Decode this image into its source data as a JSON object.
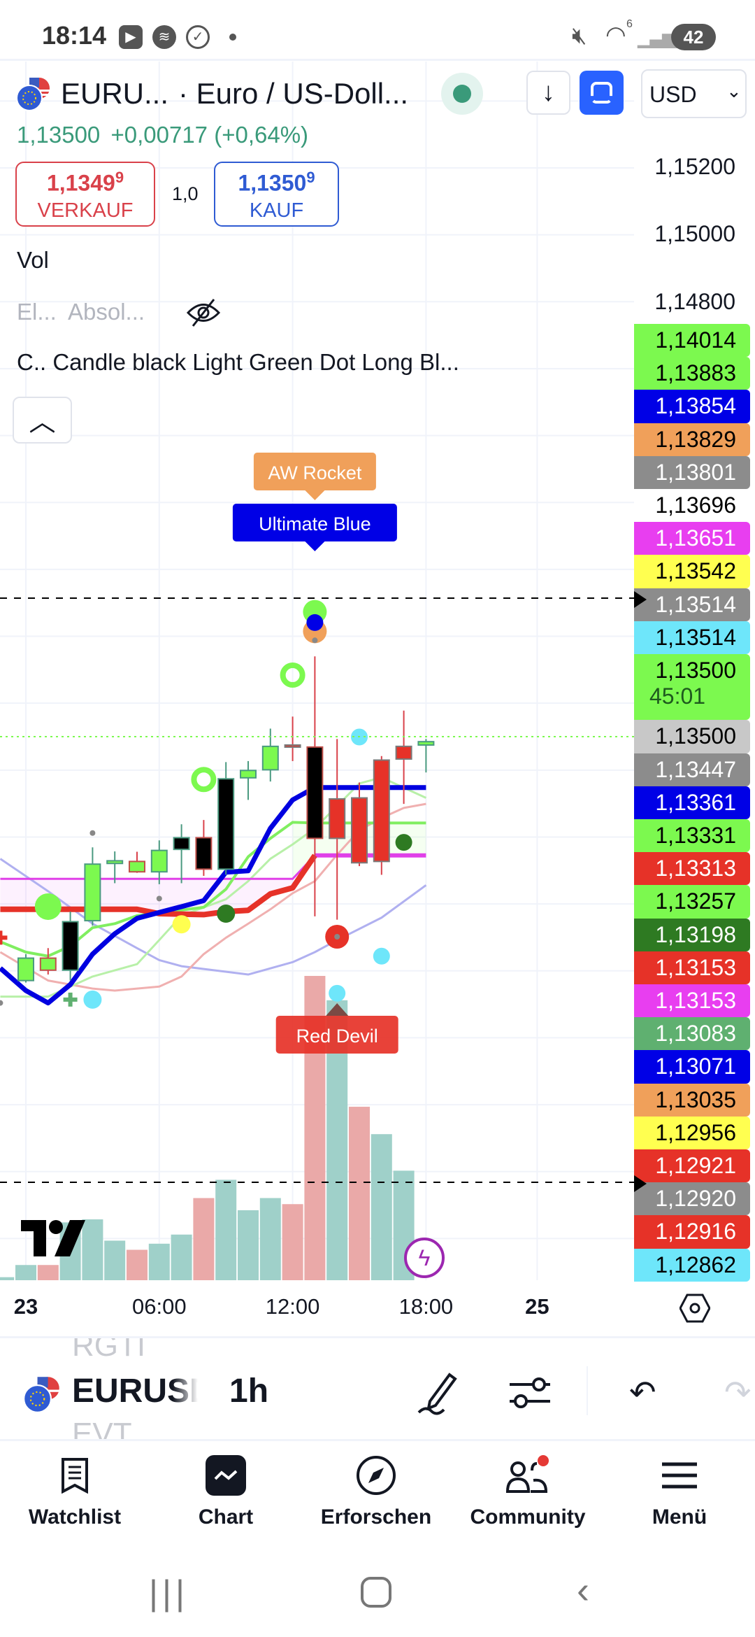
{
  "status_bar": {
    "time": "18:14",
    "battery": "42",
    "wifi_badge": "6"
  },
  "header": {
    "symbol": "EURU...",
    "description": "· Euro / US-Doll...",
    "currency": "USD"
  },
  "quote": {
    "price": "1,13500",
    "change": "+0,00717",
    "change_pct": "(+0,64%)"
  },
  "trade": {
    "sell_price": "1,1349",
    "sell_sup": "9",
    "sell_label": "VERKAUF",
    "spread": "1,0",
    "buy_price": "1,1350",
    "buy_sup": "9",
    "buy_label": "KAUF",
    "sell_color": "#d9414a",
    "buy_color": "#2f5bd3"
  },
  "indicators": {
    "vol": "Vol",
    "el": "El...",
    "absol": "Absol...",
    "candle_prefix": "C..",
    "candle_name": "Candle black Light Green Dot Long Bl..."
  },
  "price_axis": {
    "ticks": [
      "1,15200",
      "1,15000",
      "1,14800"
    ],
    "labels": [
      {
        "text": "1,14014",
        "bg": "#7cf94f",
        "fg": "#000"
      },
      {
        "text": "1,13883",
        "bg": "#7cf94f",
        "fg": "#000"
      },
      {
        "text": "1,13854",
        "bg": "#0000e6",
        "fg": "#fff"
      },
      {
        "text": "1,13829",
        "bg": "#f0a05a",
        "fg": "#000"
      },
      {
        "text": "1,13801",
        "bg": "#8c8c8c",
        "fg": "#fff"
      },
      {
        "text": "1,13696",
        "bg": "#ffffff",
        "fg": "#000"
      },
      {
        "text": "1,13651",
        "bg": "#e83ef0",
        "fg": "#fff"
      },
      {
        "text": "1,13542",
        "bg": "#ffff50",
        "fg": "#000"
      },
      {
        "text": "1,13514",
        "bg": "#8c8c8c",
        "fg": "#fff"
      },
      {
        "text": "1,13514",
        "bg": "#6ee6fa",
        "fg": "#000"
      },
      {
        "text": "1,13500",
        "bg": "#7cf94f",
        "fg": "#000",
        "sub": "45:01"
      },
      {
        "text": "1,13500",
        "bg": "#c8c8c8",
        "fg": "#000"
      },
      {
        "text": "1,13447",
        "bg": "#8c8c8c",
        "fg": "#fff"
      },
      {
        "text": "1,13361",
        "bg": "#0000e6",
        "fg": "#fff"
      },
      {
        "text": "1,13331",
        "bg": "#7cf94f",
        "fg": "#000"
      },
      {
        "text": "1,13313",
        "bg": "#e63228",
        "fg": "#fff"
      },
      {
        "text": "1,13257",
        "bg": "#7cf94f",
        "fg": "#000"
      },
      {
        "text": "1,13198",
        "bg": "#2e7a22",
        "fg": "#fff"
      },
      {
        "text": "1,13153",
        "bg": "#e63228",
        "fg": "#fff"
      },
      {
        "text": "1,13153",
        "bg": "#e83ef0",
        "fg": "#fff"
      },
      {
        "text": "1,13083",
        "bg": "#5fb070",
        "fg": "#fff"
      },
      {
        "text": "1,13071",
        "bg": "#0000e6",
        "fg": "#fff"
      },
      {
        "text": "1,13035",
        "bg": "#f0a05a",
        "fg": "#000"
      },
      {
        "text": "1,12956",
        "bg": "#ffff50",
        "fg": "#000"
      },
      {
        "text": "1,12921",
        "bg": "#e63228",
        "fg": "#fff"
      },
      {
        "text": "1,12920",
        "bg": "#8c8c8c",
        "fg": "#fff"
      },
      {
        "text": "1,12916",
        "bg": "#e63228",
        "fg": "#fff"
      },
      {
        "text": "1,12862",
        "bg": "#6ee6fa",
        "fg": "#000"
      }
    ]
  },
  "time_axis": [
    {
      "label": "23",
      "hour": 0,
      "bold": true
    },
    {
      "label": "06:00",
      "hour": 6
    },
    {
      "label": "12:00",
      "hour": 12
    },
    {
      "label": "18:00",
      "hour": 18
    },
    {
      "label": "25",
      "hour": 23,
      "bold": true
    }
  ],
  "toolbar": {
    "symbol": "EURUSD",
    "interval": "1h",
    "prev_symbol": "RGTI",
    "next_symbol": "EVT"
  },
  "nav": [
    {
      "label": "Watchlist",
      "icon": "watchlist-icon"
    },
    {
      "label": "Chart",
      "icon": "chart-icon",
      "active": true
    },
    {
      "label": "Erforschen",
      "icon": "compass-icon"
    },
    {
      "label": "Community",
      "icon": "community-icon",
      "badge": true
    },
    {
      "label": "Menü",
      "icon": "menu-icon"
    }
  ],
  "chart_data": {
    "type": "candlestick",
    "symbol": "EURUSD",
    "interval": "1h",
    "current_price": 1.135,
    "price_ticks": [
      1.152,
      1.15,
      1.148
    ],
    "candles": [
      {
        "h": 0,
        "o": 1.12771,
        "hi": 1.1285,
        "lo": 1.12765,
        "c": 1.12838,
        "color": "green"
      },
      {
        "h": 1,
        "o": 1.12802,
        "hi": 1.12868,
        "lo": 1.12789,
        "c": 1.12838,
        "color": "green",
        "border": "red"
      },
      {
        "h": 2,
        "o": 1.12802,
        "hi": 1.12977,
        "lo": 1.12771,
        "c": 1.12947,
        "color": "black"
      },
      {
        "h": 3,
        "o": 1.1295,
        "hi": 1.13169,
        "lo": 1.12935,
        "c": 1.13119,
        "color": "green"
      },
      {
        "h": 4,
        "o": 1.13121,
        "hi": 1.13157,
        "lo": 1.13062,
        "c": 1.13129,
        "color": "green"
      },
      {
        "h": 5,
        "o": 1.13096,
        "hi": 1.13156,
        "lo": 1.13093,
        "c": 1.13127,
        "color": "green",
        "border": "red"
      },
      {
        "h": 6,
        "o": 1.13096,
        "hi": 1.1319,
        "lo": 1.13059,
        "c": 1.1316,
        "color": "green"
      },
      {
        "h": 7,
        "o": 1.13163,
        "hi": 1.13238,
        "lo": 1.13062,
        "c": 1.13198,
        "color": "black"
      },
      {
        "h": 8,
        "o": 1.13104,
        "hi": 1.13251,
        "lo": 1.13084,
        "c": 1.13198,
        "color": "black",
        "border": "red"
      },
      {
        "h": 9,
        "o": 1.13104,
        "hi": 1.13424,
        "lo": 1.13087,
        "c": 1.13374,
        "color": "black"
      },
      {
        "h": 10,
        "o": 1.13377,
        "hi": 1.13427,
        "lo": 1.13311,
        "c": 1.13399,
        "color": "green"
      },
      {
        "h": 11,
        "o": 1.13401,
        "hi": 1.13524,
        "lo": 1.13366,
        "c": 1.13471,
        "color": "green"
      },
      {
        "h": 12,
        "o": 1.13475,
        "hi": 1.1356,
        "lo": 1.13427,
        "c": 1.13475,
        "color": "red"
      },
      {
        "h": 13,
        "o": 1.13196,
        "hi": 1.1374,
        "lo": 1.12963,
        "c": 1.13469,
        "color": "black",
        "border": "red"
      },
      {
        "h": 14,
        "o": 1.13314,
        "hi": 1.13493,
        "lo": 1.12953,
        "c": 1.13196,
        "color": "red"
      },
      {
        "h": 15,
        "o": 1.13317,
        "hi": 1.13363,
        "lo": 1.13113,
        "c": 1.13123,
        "color": "red"
      },
      {
        "h": 16,
        "o": 1.1343,
        "hi": 1.13442,
        "lo": 1.13087,
        "c": 1.13127,
        "color": "red"
      },
      {
        "h": 17,
        "o": 1.13471,
        "hi": 1.13578,
        "lo": 1.13299,
        "c": 1.13433,
        "color": "red"
      },
      {
        "h": 18,
        "o": 1.13475,
        "hi": 1.13493,
        "lo": 1.13393,
        "c": 1.13485,
        "color": "green"
      }
    ],
    "lines": [
      {
        "color": "#b0b0f0",
        "width": 3,
        "points": [
          [
            -1.15,
            1.13135
          ],
          [
            1,
            1.13038
          ],
          [
            3,
            1.12941
          ],
          [
            5,
            1.12868
          ],
          [
            6,
            1.12832
          ],
          [
            7,
            1.12814
          ],
          [
            10,
            1.12789
          ],
          [
            12,
            1.12826
          ],
          [
            13,
            1.12856
          ],
          [
            14,
            1.12892
          ],
          [
            16,
            1.12959
          ],
          [
            18,
            1.13056
          ]
        ]
      },
      {
        "color": "#f0b0b0",
        "width": 3,
        "points": [
          [
            -1.15,
            1.12856
          ],
          [
            1,
            1.12771
          ],
          [
            3,
            1.12747
          ],
          [
            4,
            1.12741
          ],
          [
            6,
            1.12753
          ],
          [
            7,
            1.12783
          ],
          [
            8,
            1.1285
          ],
          [
            9,
            1.12899
          ],
          [
            10,
            1.12941
          ],
          [
            11,
            1.12984
          ],
          [
            12,
            1.13032
          ],
          [
            13,
            1.13068
          ],
          [
            14,
            1.13147
          ],
          [
            15,
            1.1322
          ],
          [
            16,
            1.13257
          ],
          [
            17,
            1.13287
          ],
          [
            18,
            1.13299
          ]
        ]
      },
      {
        "color": "#b8f0a8",
        "width": 3,
        "points": [
          [
            -1.15,
            1.12723
          ],
          [
            1,
            1.12723
          ],
          [
            3,
            1.12783
          ],
          [
            5,
            1.1282
          ],
          [
            6,
            1.12892
          ],
          [
            7,
            1.12965
          ],
          [
            9,
            1.13014
          ],
          [
            10,
            1.13068
          ],
          [
            11,
            1.13135
          ],
          [
            12,
            1.13178
          ],
          [
            13,
            1.13226
          ],
          [
            15,
            1.1336
          ],
          [
            16,
            1.13378
          ],
          [
            18,
            1.13317
          ]
        ]
      },
      {
        "color": "#e040e8",
        "width": 3,
        "points": [
          [
            -1.15,
            1.13075
          ],
          [
            12,
            1.13075
          ],
          [
            13,
            1.13145
          ]
        ]
      },
      {
        "color": "#e040e8",
        "width": 6,
        "points": [
          [
            13,
            1.13145
          ],
          [
            18,
            1.13145
          ]
        ]
      },
      {
        "color": "#80ee60",
        "width": 4,
        "points": [
          [
            -1.15,
            1.12887
          ],
          [
            0,
            1.12856
          ],
          [
            1,
            1.12844
          ],
          [
            2,
            1.12874
          ],
          [
            3,
            1.12929
          ],
          [
            4,
            1.12941
          ],
          [
            5,
            1.12965
          ],
          [
            8,
            1.1299
          ],
          [
            9,
            1.13044
          ],
          [
            10,
            1.13141
          ],
          [
            11,
            1.13196
          ],
          [
            12,
            1.13244
          ],
          [
            13,
            1.13242
          ],
          [
            18,
            1.13242
          ]
        ]
      },
      {
        "color": "#e63228",
        "width": 8,
        "points": [
          [
            -1.15,
            1.12984
          ],
          [
            5,
            1.12984
          ],
          [
            6,
            1.12971
          ],
          [
            8,
            1.12968
          ],
          [
            9,
            1.12977
          ],
          [
            10,
            1.12981
          ],
          [
            11,
            1.1303
          ],
          [
            12,
            1.13048
          ],
          [
            13,
            1.13145
          ]
        ]
      },
      {
        "color": "#0000e0",
        "width": 7,
        "points": [
          [
            -1.15,
            1.12808
          ],
          [
            0,
            1.12741
          ],
          [
            1,
            1.12704
          ],
          [
            2,
            1.12759
          ],
          [
            3,
            1.1285
          ],
          [
            4,
            1.12911
          ],
          [
            5,
            1.12957
          ],
          [
            7,
            1.12992
          ],
          [
            8,
            1.1301
          ],
          [
            9,
            1.13095
          ],
          [
            10,
            1.13099
          ],
          [
            11,
            1.13226
          ],
          [
            12,
            1.13311
          ],
          [
            13,
            1.13348
          ],
          [
            18,
            1.13348
          ]
        ]
      }
    ],
    "markers": [
      {
        "h": 1,
        "p": 1.12992,
        "type": "dot",
        "color": "#7cf94f",
        "r": 19
      },
      {
        "h": -1.15,
        "p": 1.12899,
        "type": "plus",
        "color": "#e63228"
      },
      {
        "h": 2,
        "p": 1.12714,
        "type": "plus",
        "color": "#5fb070"
      },
      {
        "h": 3,
        "p": 1.12714,
        "type": "dot",
        "color": "#6ee6fa",
        "r": 13
      },
      {
        "h": 3,
        "p": 1.13212,
        "type": "dot",
        "color": "#888",
        "r": 4
      },
      {
        "h": 6,
        "p": 1.13016,
        "type": "dot",
        "color": "#888",
        "r": 4
      },
      {
        "h": -1.15,
        "p": 1.12704,
        "type": "dot",
        "color": "#888",
        "r": 4
      },
      {
        "h": 7,
        "p": 1.12939,
        "type": "dot",
        "color": "#ffff50",
        "r": 13
      },
      {
        "h": 9,
        "p": 1.12971,
        "type": "dot",
        "color": "#2e7a22",
        "r": 13
      },
      {
        "h": 8,
        "p": 1.13372,
        "type": "ring",
        "color": "#7cf94f",
        "r": 14
      },
      {
        "h": 12,
        "p": 1.13684,
        "type": "ring",
        "color": "#7cf94f",
        "r": 14
      },
      {
        "h": 13,
        "p": 1.13873,
        "type": "dot",
        "color": "#7cf94f",
        "r": 17
      },
      {
        "h": 13,
        "p": 1.13815,
        "type": "dot",
        "color": "#f0a05a",
        "r": 17
      },
      {
        "h": 13,
        "p": 1.13841,
        "type": "dot",
        "color": "#0000e6",
        "r": 12
      },
      {
        "h": 13,
        "p": 1.13788,
        "type": "dot",
        "color": "#888",
        "r": 4
      },
      {
        "h": 15,
        "p": 1.13499,
        "type": "dot",
        "color": "#6ee6fa",
        "r": 12
      },
      {
        "h": 14,
        "p": 1.12902,
        "type": "dot",
        "color": "#e63228",
        "r": 17
      },
      {
        "h": 14,
        "p": 1.12902,
        "type": "dot",
        "color": "#888",
        "r": 4
      },
      {
        "h": 16,
        "p": 1.12844,
        "type": "dot",
        "color": "#6ee6fa",
        "r": 12
      },
      {
        "h": 17,
        "p": 1.13184,
        "type": "dot",
        "color": "#2e7a22",
        "r": 12
      },
      {
        "h": 14,
        "p": 1.12733,
        "type": "dot",
        "color": "#6ee6fa",
        "r": 12
      }
    ],
    "annotations": [
      {
        "text": "AW Rocket",
        "h": 13,
        "bg": "#f0a05a",
        "fg": "#fff",
        "pos": "top"
      },
      {
        "text": "Ultimate Blue",
        "h": 13,
        "bg": "#0000e6",
        "fg": "#fff",
        "pos": "top2"
      },
      {
        "text": "Red Devil",
        "h": 14,
        "bg": "#e63228",
        "fg": "#fff",
        "pos": "bottom"
      }
    ],
    "horizontal_lines": [
      1.13914,
      1.12168
    ],
    "volume_relative": [
      {
        "h": -1,
        "v": 0.01,
        "color": "teal"
      },
      {
        "h": 0,
        "v": 0.05,
        "color": "teal"
      },
      {
        "h": 1,
        "v": 0.05,
        "color": "pink"
      },
      {
        "h": 2,
        "v": 0.19,
        "color": "teal"
      },
      {
        "h": 3,
        "v": 0.2,
        "color": "teal"
      },
      {
        "h": 4,
        "v": 0.13,
        "color": "teal"
      },
      {
        "h": 5,
        "v": 0.1,
        "color": "pink"
      },
      {
        "h": 6,
        "v": 0.12,
        "color": "teal"
      },
      {
        "h": 7,
        "v": 0.15,
        "color": "teal"
      },
      {
        "h": 8,
        "v": 0.27,
        "color": "pink"
      },
      {
        "h": 9,
        "v": 0.33,
        "color": "teal"
      },
      {
        "h": 10,
        "v": 0.23,
        "color": "teal"
      },
      {
        "h": 11,
        "v": 0.27,
        "color": "teal"
      },
      {
        "h": 12,
        "v": 0.25,
        "color": "pink"
      },
      {
        "h": 13,
        "v": 1.0,
        "color": "pink"
      },
      {
        "h": 14,
        "v": 0.92,
        "color": "teal"
      },
      {
        "h": 15,
        "v": 0.57,
        "color": "pink"
      },
      {
        "h": 16,
        "v": 0.48,
        "color": "teal"
      },
      {
        "h": 17,
        "v": 0.36,
        "color": "teal"
      }
    ]
  }
}
